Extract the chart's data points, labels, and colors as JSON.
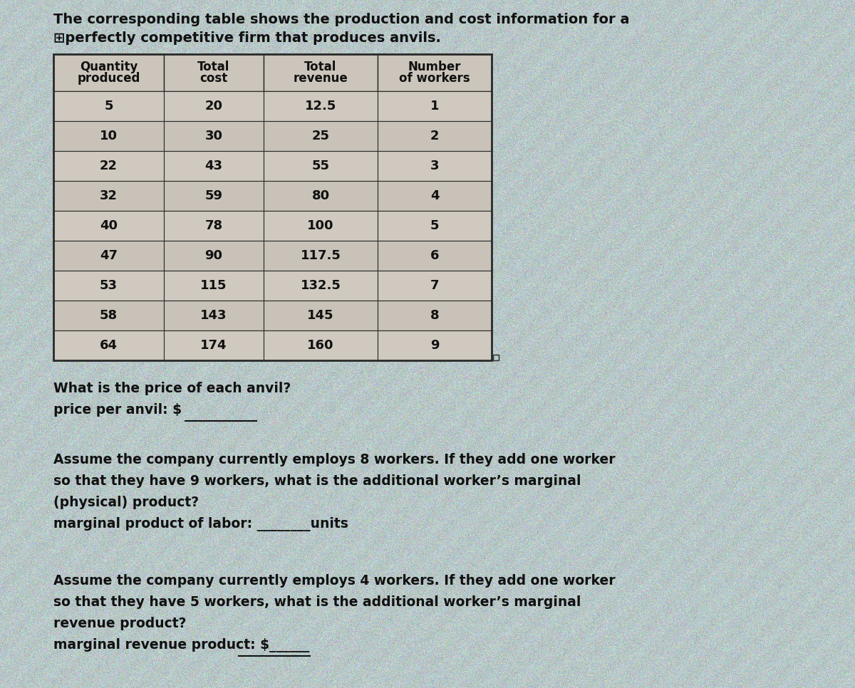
{
  "title_line1": "The corresponding table shows the production and cost information for a",
  "title_line2": "⊞perfectly competitive firm that produces anvils.",
  "col_headers": [
    "Quantity\nproduced",
    "Total\ncost",
    "Total\nrevenue",
    "Number\nof workers"
  ],
  "table_data": [
    [
      "5",
      "20",
      "12.5",
      "1"
    ],
    [
      "10",
      "30",
      "25",
      "2"
    ],
    [
      "22",
      "43",
      "55",
      "3"
    ],
    [
      "32",
      "59",
      "80",
      "4"
    ],
    [
      "40",
      "78",
      "100",
      "5"
    ],
    [
      "47",
      "90",
      "117.5",
      "6"
    ],
    [
      "53",
      "115",
      "132.5",
      "7"
    ],
    [
      "58",
      "143",
      "145",
      "8"
    ],
    [
      "64",
      "174",
      "160",
      "9"
    ]
  ],
  "q1_line1": "What is the price of each anvil?",
  "q1_line2": "price per anvil: $",
  "q2_line1": "Assume the company currently employs 8 workers. If they add one worker",
  "q2_line2": "so that they have 9 workers, what is the additional worker’s marginal",
  "q2_line3": "(physical) product?",
  "q2_line4": "marginal product of labor: ________units",
  "q3_line1": "Assume the company currently employs 4 workers. If they add one worker",
  "q3_line2": "so that they have 5 workers, what is the additional worker’s marginal",
  "q3_line3": "revenue product?",
  "q3_line4": "marginal revenue product: $______",
  "bg_base_color": [
    0.72,
    0.75,
    0.72
  ],
  "noise_std": 0.06,
  "table_bg": "#d4cfc5",
  "table_border": "#2a2a2a",
  "header_bg": "#cbc5bb",
  "row_bg_a": "#cfc9bf",
  "row_bg_b": "#c8c2b8",
  "text_color": "#111111",
  "content_bg": "#c8c5be"
}
